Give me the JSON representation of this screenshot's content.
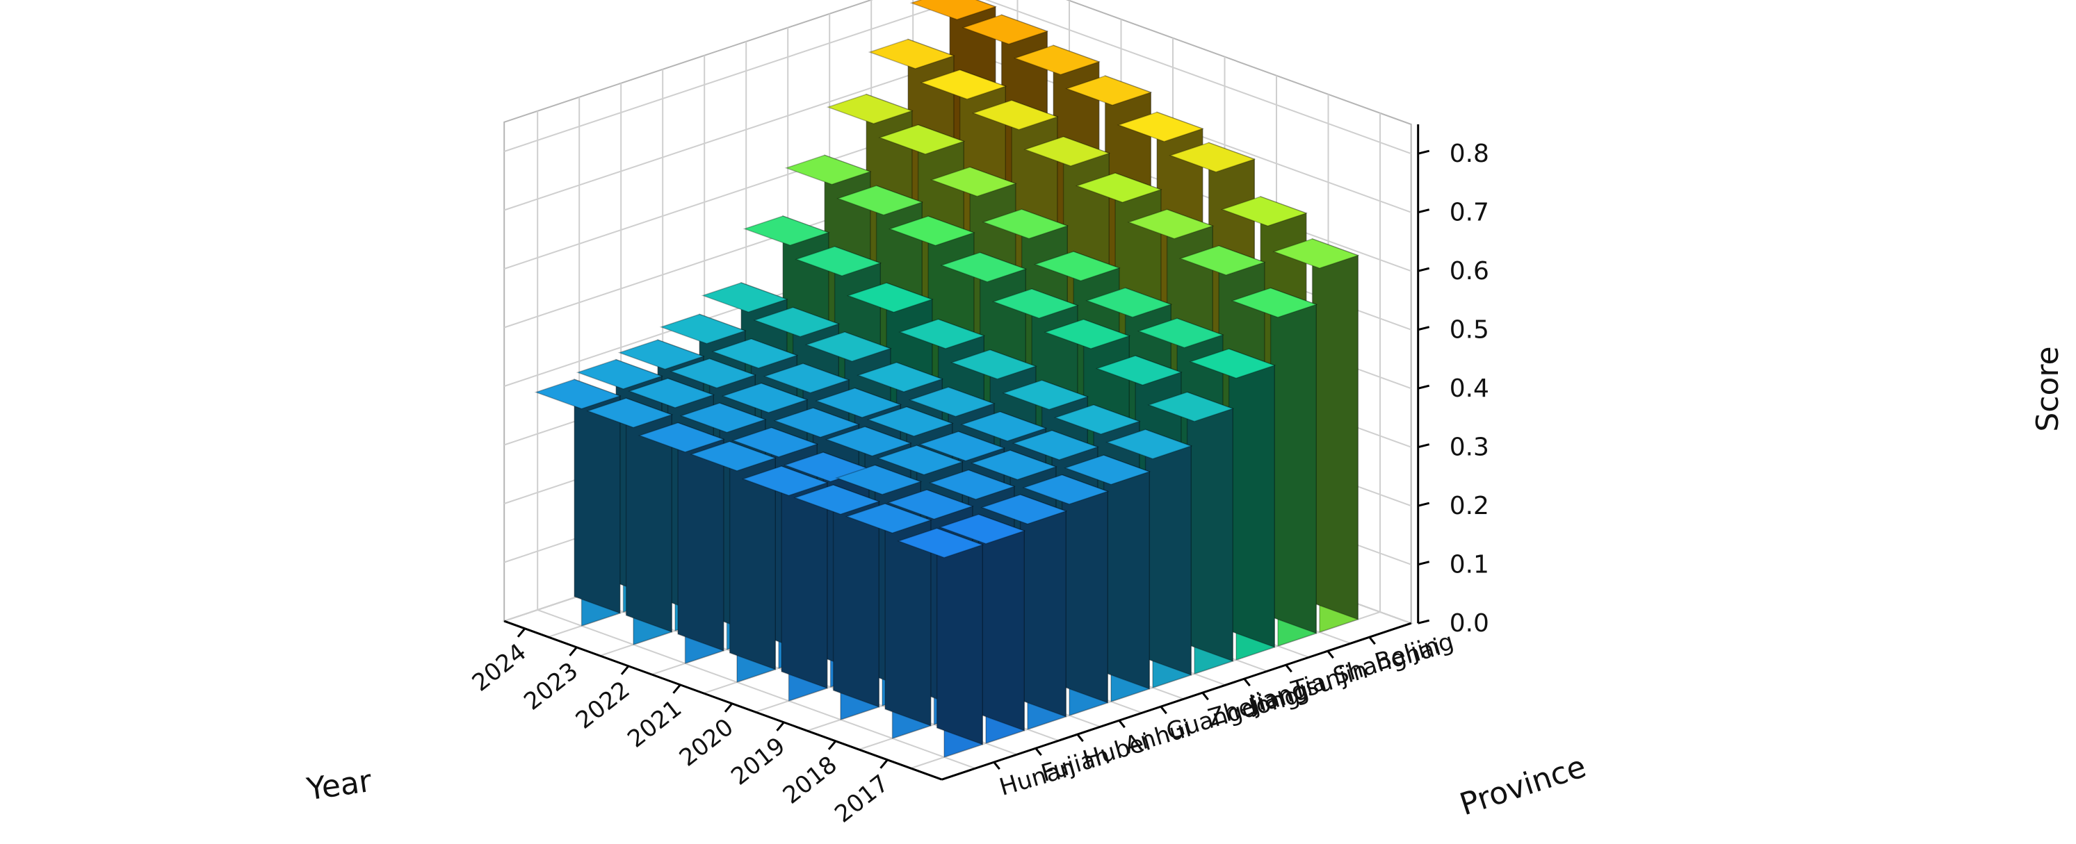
{
  "chart_data": {
    "type": "bar",
    "subtype": "3d-bar",
    "title": "",
    "xlabel": "Year",
    "ylabel": "Province",
    "zlabel": "Score",
    "years": [
      "2017",
      "2018",
      "2019",
      "2020",
      "2021",
      "2022",
      "2023",
      "2024"
    ],
    "provinces": [
      "Hunan",
      "Fujian",
      "Hubei",
      "Anhui",
      "Guangdong",
      "Zhejiang",
      "Jiangsu",
      "Tianjin",
      "Shanghai",
      "Beijing"
    ],
    "zticks": [
      "0.0",
      "0.1",
      "0.2",
      "0.3",
      "0.4",
      "0.5",
      "0.6",
      "0.7",
      "0.8"
    ],
    "zlim": [
      0,
      0.85
    ],
    "grid": true,
    "colormap": "viridis-like (blue → green → yellow → orange by score)",
    "values": [
      [
        0.34,
        0.34,
        0.35,
        0.36,
        0.37,
        0.39,
        0.43,
        0.48,
        0.56,
        0.62
      ],
      [
        0.35,
        0.35,
        0.36,
        0.37,
        0.38,
        0.4,
        0.46,
        0.5,
        0.6,
        0.66
      ],
      [
        0.35,
        0.36,
        0.37,
        0.37,
        0.38,
        0.41,
        0.49,
        0.52,
        0.63,
        0.72
      ],
      [
        0.35,
        0.35,
        0.37,
        0.38,
        0.39,
        0.43,
        0.51,
        0.55,
        0.66,
        0.74
      ],
      [
        0.36,
        0.36,
        0.37,
        0.38,
        0.4,
        0.45,
        0.54,
        0.59,
        0.69,
        0.77
      ],
      [
        0.36,
        0.37,
        0.38,
        0.39,
        0.42,
        0.48,
        0.57,
        0.63,
        0.72,
        0.79
      ],
      [
        0.37,
        0.38,
        0.39,
        0.4,
        0.43,
        0.51,
        0.59,
        0.67,
        0.74,
        0.81
      ],
      [
        0.37,
        0.38,
        0.39,
        0.41,
        0.44,
        0.53,
        0.61,
        0.69,
        0.76,
        0.82
      ]
    ]
  }
}
